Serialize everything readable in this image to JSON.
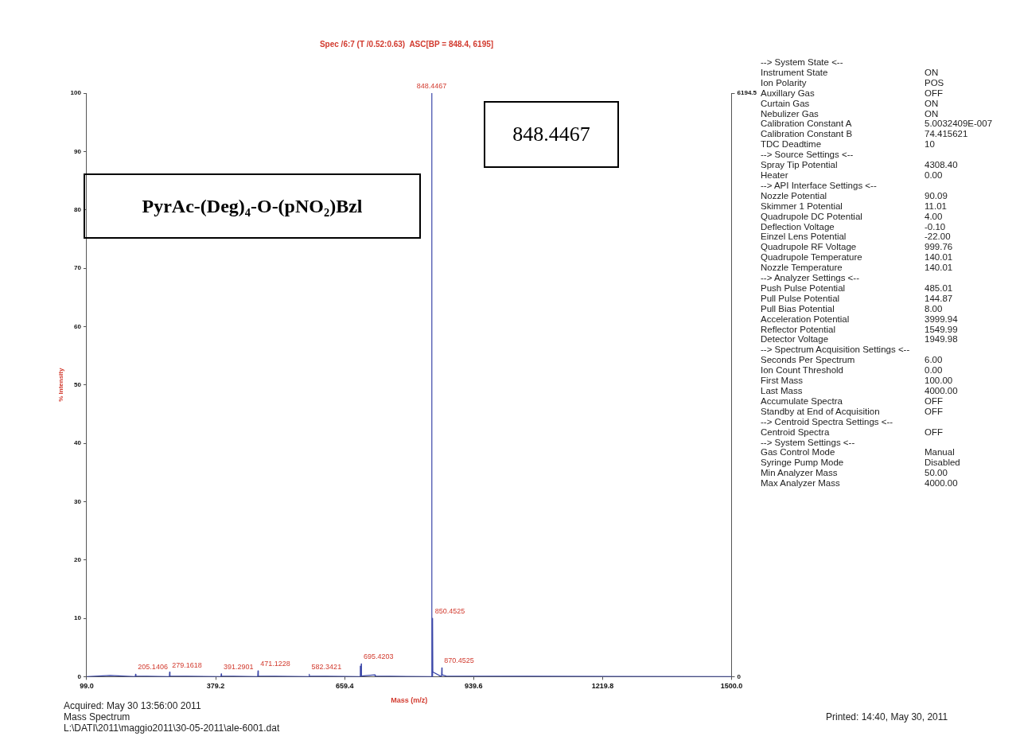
{
  "chart_data": [
    {
      "type": "line",
      "subtitle": "Spec /6:7 (T /0.52:0.63)  ASC[BP = 848.4, 6195]",
      "xlabel": "Mass (m/z)",
      "ylabel": "% Intensity",
      "series": [
        {
          "color": "#3a46a8",
          "x": [
            99,
            150,
            204.5,
            205.14,
            206,
            278.6,
            279.16,
            280,
            390.7,
            391.29,
            392,
            470.5,
            471.12,
            472,
            581.8,
            582.34,
            583,
            693,
            693.4,
            694,
            695,
            695.42,
            696,
            725,
            726,
            847.8,
            848.4467,
            849.2,
            850.1,
            850.4525,
            851,
            869.8,
            870.4525,
            871.2,
            880,
            1500
          ],
          "values": [
            0,
            0.2,
            0,
            0.4,
            0.1,
            0,
            0.8,
            0.1,
            0,
            0.5,
            0.1,
            0,
            1,
            0.1,
            0,
            0.4,
            0.1,
            0,
            1.8,
            0.2,
            0,
            2.2,
            0.1,
            0.3,
            0.1,
            0,
            100,
            0.5,
            0,
            10,
            0.8,
            0,
            1.5,
            0.3,
            0.1,
            0
          ]
        }
      ],
      "xlim": [
        99,
        1500
      ],
      "xticks": [
        {
          "value": 99,
          "label": "99.0"
        },
        {
          "value": 379.2,
          "label": "379.2"
        },
        {
          "value": 659.4,
          "label": "659.4"
        },
        {
          "value": 939.6,
          "label": "939.6"
        },
        {
          "value": 1219.8,
          "label": "1219.8"
        },
        {
          "value": 1500,
          "label": "1500.0"
        }
      ],
      "ylim": [
        0,
        100
      ],
      "yticks": [
        0,
        10,
        20,
        30,
        40,
        50,
        60,
        70,
        80,
        90,
        100
      ],
      "y2lim": [
        0,
        6194.5
      ],
      "y2ticks": [
        0,
        6194.5
      ],
      "grid": false,
      "legend": false,
      "marker": "none",
      "line_style": "solid",
      "annotations": [
        {
          "text": "205.1406",
          "x": 205.14,
          "y": 0.4
        },
        {
          "text": "279.1618",
          "x": 279.16,
          "y": 0.8
        },
        {
          "text": "391.2901",
          "x": 391.29,
          "y": 0.5
        },
        {
          "text": "471.1228",
          "x": 471.12,
          "y": 1
        },
        {
          "text": "582.3421",
          "x": 582.34,
          "y": 0.4
        },
        {
          "text": "695.4203",
          "x": 695.42,
          "y": 2.2
        },
        {
          "text": "848.4467",
          "x": 848.4467,
          "y": 100
        },
        {
          "text": "850.4525",
          "x": 850.4525,
          "y": 10
        },
        {
          "text": "870.4525",
          "x": 870.4525,
          "y": 1.5
        },
        "848.4467",
        "PyrAc-(Deg)₄-O-(pNO₂)Bzl",
        "Acquired: May 30 13:56:00 2011",
        "Mass Spectrum",
        "L:\\DATI\\2011\\maggio2011\\30-05-2011\\ale-6001.dat",
        "Printed: 14:40, May 30, 2011"
      ]
    },
    {
      "type": "other",
      "annotations": [
        "--> System State <--",
        "Instrument State\tON",
        "Ion Polarity\tPOS",
        "Auxillary Gas\tOFF",
        "Curtain Gas\tON",
        "Nebulizer Gas\tON",
        "Calibration Constant A\t5.0032409E-007",
        "Calibration Constant B\t74.415621",
        "TDC Deadtime\t10",
        "--> Source Settings <--",
        "Spray Tip Potential\t4308.40",
        "Heater\t0.00",
        "--> API Interface Settings <--",
        "Nozzle Potential\t90.09",
        "Skimmer 1 Potential\t11.01",
        "Quadrupole DC Potential\t4.00",
        "Deflection Voltage\t-0.10",
        "Einzel Lens Potential\t-22.00",
        "Quadrupole RF Voltage\t999.76",
        "Quadrupole Temperature\t140.01",
        "Nozzle Temperature\t140.01",
        "--> Analyzer Settings <--",
        "Push Pulse Potential\t485.01",
        "Pull Pulse Potential\t144.87",
        "Pull Bias Potential\t8.00",
        "Acceleration Potential\t3999.94",
        "Reflector Potential\t1549.99",
        "Detector Voltage\t1949.98",
        "--> Spectrum Acquisition Settings <--",
        "Seconds Per Spectrum\t6.00",
        "Ion Count Threshold\t0.00",
        "First Mass\t100.00",
        "Last Mass\t4000.00",
        "Accumulate Spectra\tOFF",
        "Standby at End of Acquisition\tOFF",
        "--> Centroid Spectra Settings <--",
        "Centroid Spectra\tOFF",
        "--> System Settings <--",
        "Gas Control Mode\tManual",
        "Syringe Pump Mode\tDisabled",
        "Min Analyzer Mass\t50.00",
        "Max Analyzer Mass\t4000.00"
      ]
    }
  ]
}
